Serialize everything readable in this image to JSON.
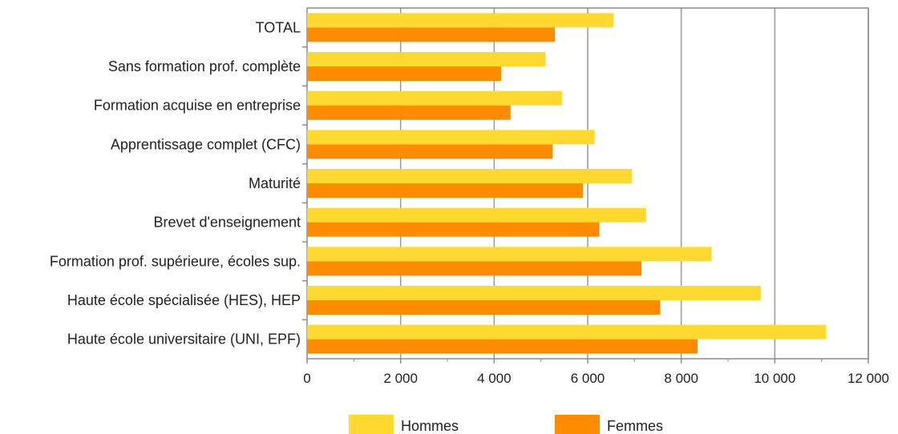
{
  "chart_data": {
    "type": "bar",
    "orientation": "horizontal",
    "categories": [
      "TOTAL",
      "Sans formation prof. complète",
      "Formation acquise en entreprise",
      "Apprentissage complet (CFC)",
      "Maturité",
      "Brevet d'enseignement",
      "Formation prof. supérieure, écoles sup.",
      "Haute école spécialisée (HES), HEP",
      "Haute école universitaire (UNI, EPF)"
    ],
    "series": [
      {
        "name": "Hommes",
        "color": "#FFD92F",
        "values": [
          6550,
          5100,
          5450,
          6150,
          6950,
          7250,
          8650,
          9700,
          11100
        ]
      },
      {
        "name": "Femmes",
        "color": "#FF8C00",
        "values": [
          5300,
          4150,
          4350,
          5250,
          5900,
          6250,
          7150,
          7550,
          8350
        ]
      }
    ],
    "xlim": [
      0,
      12000
    ],
    "xticks": [
      0,
      2000,
      4000,
      6000,
      8000,
      10000,
      12000
    ],
    "xtick_labels": [
      "0",
      "2 000",
      "4 000",
      "6 000",
      "8 000",
      "10 000",
      "12 000"
    ],
    "grid": "vertical",
    "legend_position": "bottom-center",
    "title": "",
    "xlabel": "",
    "ylabel": ""
  }
}
